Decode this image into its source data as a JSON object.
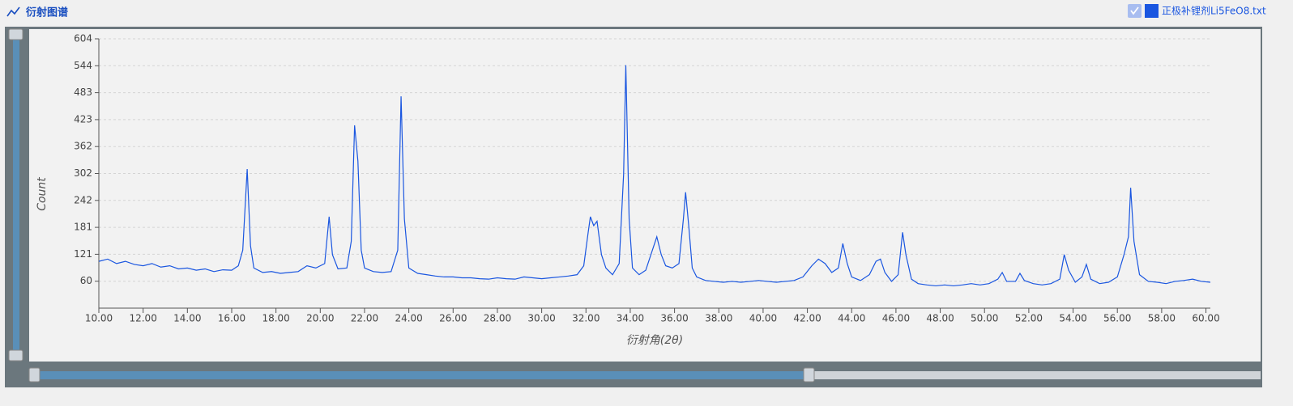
{
  "header": {
    "title": "衍射图谱"
  },
  "chart_data": {
    "type": "line",
    "x_label": "衍射角(2θ)",
    "y_label": "Count",
    "x": [
      10.0,
      10.4,
      10.8,
      11.2,
      11.6,
      12.0,
      12.4,
      12.8,
      13.2,
      13.6,
      14.0,
      14.4,
      14.8,
      15.2,
      15.6,
      16.0,
      16.3,
      16.5,
      16.7,
      16.85,
      17.0,
      17.4,
      17.8,
      18.2,
      18.6,
      19.0,
      19.4,
      19.8,
      20.2,
      20.4,
      20.55,
      20.8,
      21.2,
      21.4,
      21.55,
      21.7,
      21.85,
      22.0,
      22.4,
      22.8,
      23.2,
      23.5,
      23.65,
      23.8,
      24.0,
      24.4,
      24.8,
      25.2,
      25.6,
      26.0,
      26.4,
      26.8,
      27.2,
      27.6,
      28.0,
      28.4,
      28.8,
      29.2,
      29.6,
      30.0,
      30.4,
      30.8,
      31.2,
      31.6,
      31.9,
      32.1,
      32.2,
      32.35,
      32.5,
      32.7,
      32.9,
      33.2,
      33.5,
      33.7,
      33.8,
      33.95,
      34.1,
      34.4,
      34.7,
      35.0,
      35.2,
      35.4,
      35.6,
      35.9,
      36.2,
      36.4,
      36.5,
      36.65,
      36.8,
      37.0,
      37.4,
      37.8,
      38.2,
      38.6,
      39.0,
      39.4,
      39.8,
      40.2,
      40.6,
      41.0,
      41.4,
      41.8,
      42.2,
      42.5,
      42.8,
      43.1,
      43.4,
      43.6,
      43.8,
      44.0,
      44.4,
      44.8,
      45.1,
      45.3,
      45.5,
      45.8,
      46.1,
      46.3,
      46.45,
      46.7,
      47.0,
      47.4,
      47.8,
      48.2,
      48.6,
      49.0,
      49.4,
      49.8,
      50.2,
      50.6,
      50.8,
      51.0,
      51.4,
      51.6,
      51.8,
      52.2,
      52.6,
      53.0,
      53.4,
      53.6,
      53.8,
      54.1,
      54.4,
      54.6,
      54.8,
      55.2,
      55.6,
      56.0,
      56.3,
      56.5,
      56.6,
      56.75,
      57.0,
      57.4,
      57.8,
      58.2,
      58.6,
      59.0,
      59.4,
      59.8,
      60.2
    ],
    "series": [
      {
        "name": "正极补锂剂Li5FeO8.txt",
        "color": "#1a56e0",
        "values": [
          105,
          110,
          100,
          105,
          98,
          95,
          100,
          92,
          95,
          88,
          90,
          85,
          88,
          82,
          86,
          85,
          95,
          130,
          312,
          140,
          90,
          80,
          82,
          78,
          80,
          82,
          95,
          90,
          100,
          205,
          120,
          88,
          90,
          150,
          410,
          330,
          130,
          90,
          82,
          80,
          82,
          130,
          475,
          200,
          90,
          78,
          75,
          72,
          70,
          70,
          68,
          68,
          66,
          65,
          68,
          66,
          65,
          70,
          68,
          66,
          68,
          70,
          72,
          75,
          95,
          170,
          205,
          185,
          195,
          120,
          90,
          75,
          100,
          300,
          545,
          200,
          90,
          75,
          85,
          130,
          160,
          120,
          95,
          90,
          100,
          200,
          260,
          180,
          90,
          70,
          62,
          60,
          58,
          60,
          58,
          60,
          62,
          60,
          58,
          60,
          62,
          70,
          95,
          110,
          100,
          80,
          90,
          145,
          100,
          70,
          62,
          75,
          105,
          110,
          80,
          60,
          75,
          170,
          120,
          65,
          55,
          52,
          50,
          52,
          50,
          52,
          55,
          52,
          55,
          65,
          80,
          60,
          60,
          78,
          62,
          55,
          52,
          55,
          65,
          120,
          85,
          58,
          70,
          98,
          65,
          55,
          58,
          70,
          120,
          160,
          270,
          150,
          75,
          60,
          58,
          55,
          60,
          62,
          65,
          60,
          58
        ]
      }
    ],
    "xlim": [
      10,
      60.2
    ],
    "ylim": [
      0,
      604
    ],
    "xticks": [
      {
        "value": 10,
        "label": "10.00"
      },
      {
        "value": 12,
        "label": "12.00"
      },
      {
        "value": 14,
        "label": "14.00"
      },
      {
        "value": 16,
        "label": "16.00"
      },
      {
        "value": 18,
        "label": "18.00"
      },
      {
        "value": 20,
        "label": "20.00"
      },
      {
        "value": 22,
        "label": "22.00"
      },
      {
        "value": 24,
        "label": "24.00"
      },
      {
        "value": 26,
        "label": "26.00"
      },
      {
        "value": 28,
        "label": "28.00"
      },
      {
        "value": 30,
        "label": "30.00"
      },
      {
        "value": 32,
        "label": "32.00"
      },
      {
        "value": 34,
        "label": "34.00"
      },
      {
        "value": 36,
        "label": "36.00"
      },
      {
        "value": 38,
        "label": "38.00"
      },
      {
        "value": 40,
        "label": "40.00"
      },
      {
        "value": 42,
        "label": "42.00"
      },
      {
        "value": 44,
        "label": "44.00"
      },
      {
        "value": 46,
        "label": "46.00"
      },
      {
        "value": 48,
        "label": "48.00"
      },
      {
        "value": 50,
        "label": "50.00"
      },
      {
        "value": 52,
        "label": "52.00"
      },
      {
        "value": 54,
        "label": "54.00"
      },
      {
        "value": 56,
        "label": "56.00"
      },
      {
        "value": 58,
        "label": "58.00"
      },
      {
        "value": 60,
        "label": "60.00"
      }
    ],
    "yticks": [
      {
        "value": 60.4,
        "label": "60"
      },
      {
        "value": 120.8,
        "label": "121"
      },
      {
        "value": 181.2,
        "label": "181"
      },
      {
        "value": 241.6,
        "label": "242"
      },
      302,
      {
        "value": 362.4,
        "label": "362"
      },
      {
        "value": 422.8,
        "label": "423"
      },
      {
        "value": 483.2,
        "label": "483"
      },
      {
        "value": 543.6,
        "label": "544"
      },
      604
    ],
    "grid": true
  }
}
